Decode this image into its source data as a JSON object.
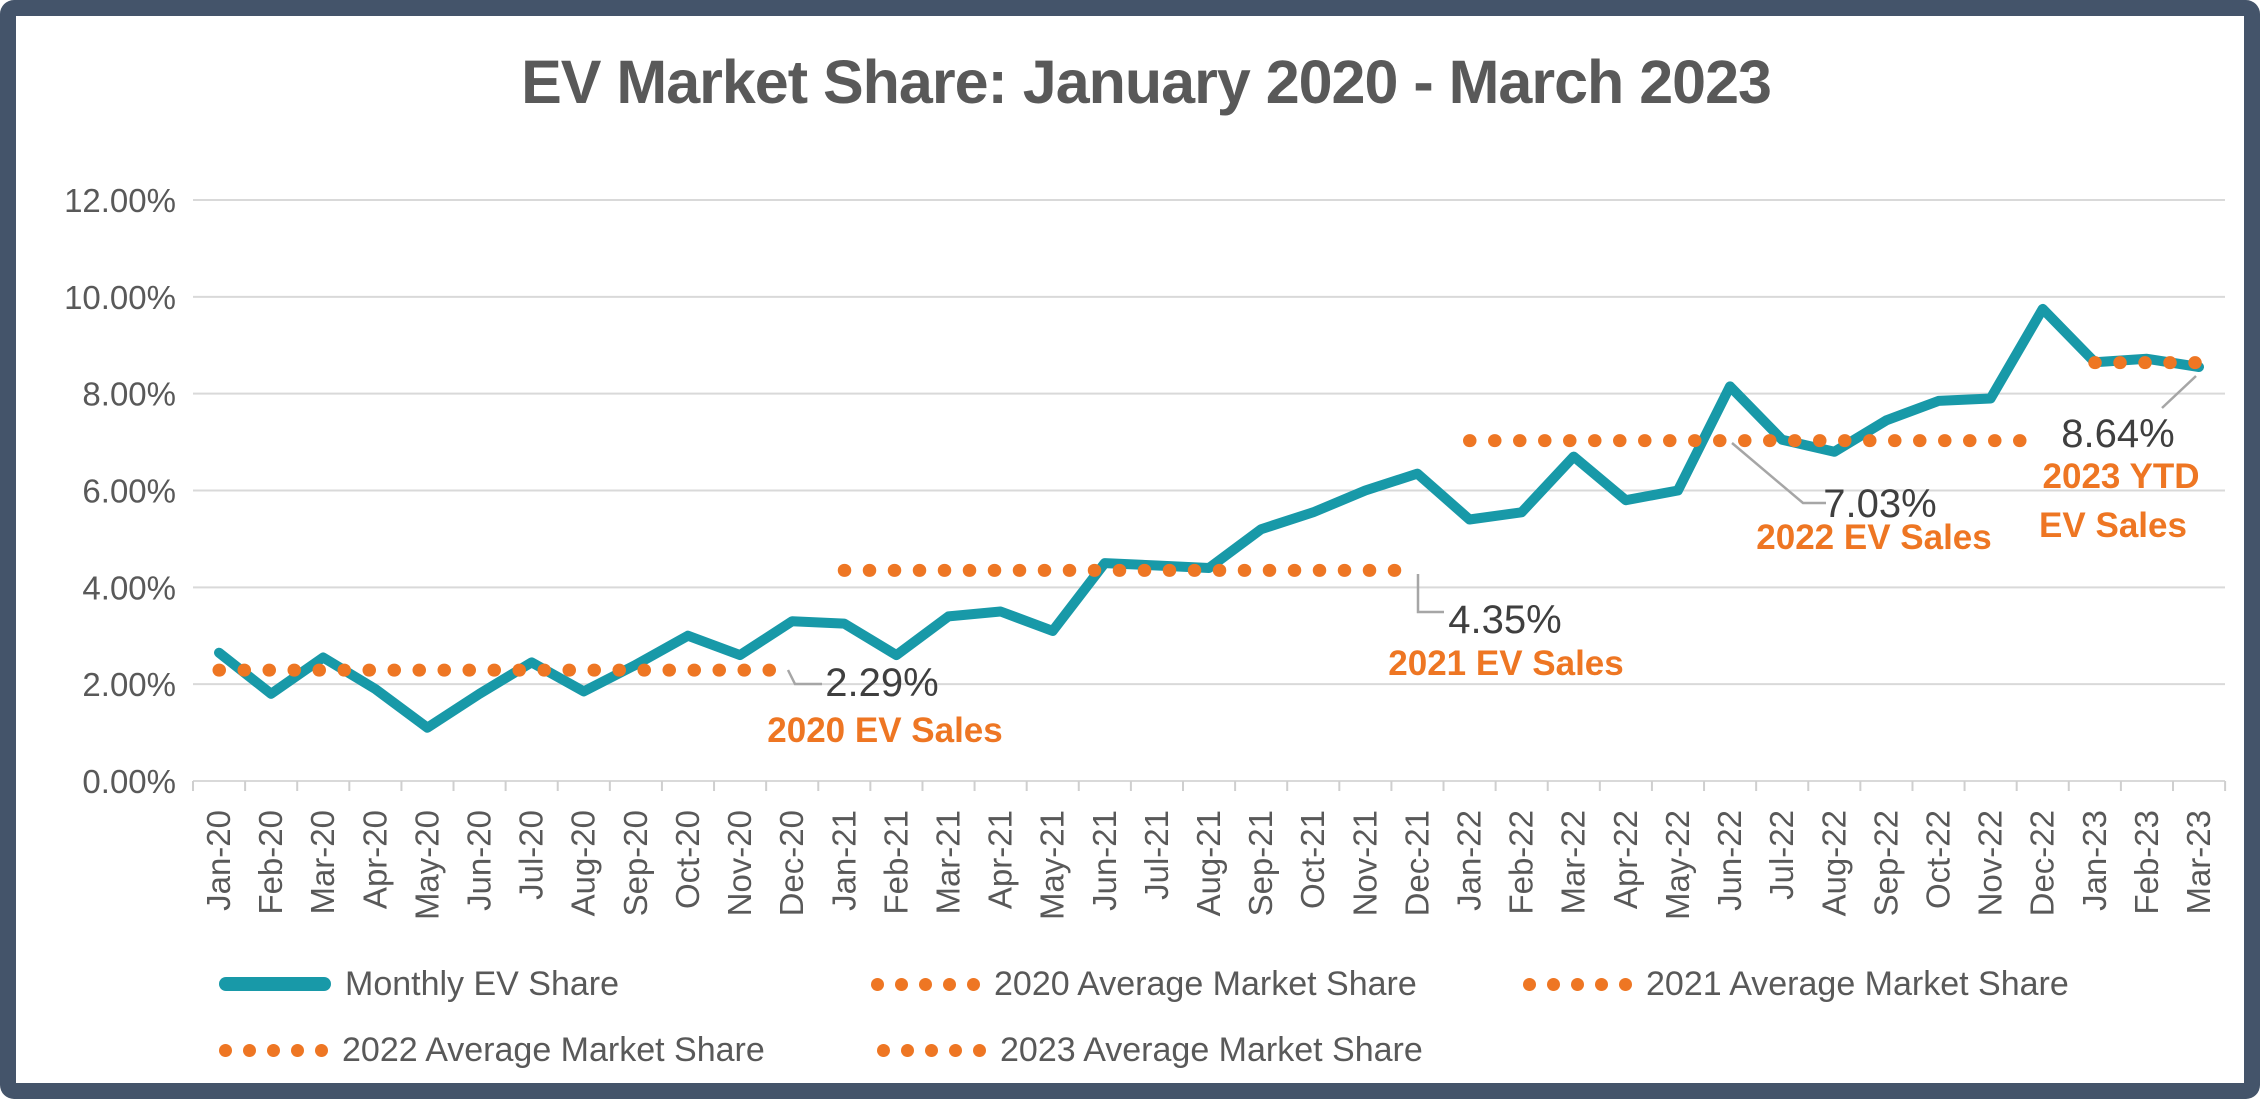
{
  "title": "EV Market Share: January 2020 - March 2023",
  "colors": {
    "series_line": "#1899A8",
    "average_dots": "#EE7623",
    "gridline": "#D9D9D9",
    "tick": "#CFCFCF",
    "axis_text": "#595959",
    "annotation_value_text": "#3F3F3F",
    "annotation_callout_text": "#EE7623",
    "leader": "#A6A6A6",
    "frame": "#44546A",
    "background": "#FFFFFF"
  },
  "chart_data": {
    "type": "line",
    "title": "EV Market Share: January 2020 - March 2023",
    "grid": "horizontal",
    "legend_position": "bottom",
    "ylim": [
      0,
      12
    ],
    "y_ticks": [
      {
        "value": 12,
        "label": "12.00%"
      },
      {
        "value": 10,
        "label": "10.00%"
      },
      {
        "value": 8,
        "label": "8.00%"
      },
      {
        "value": 6,
        "label": "6.00%"
      },
      {
        "value": 4,
        "label": "4.00%"
      },
      {
        "value": 2,
        "label": "2.00%"
      },
      {
        "value": 0,
        "label": "0.00%"
      }
    ],
    "categories": [
      "Jan-20",
      "Feb-20",
      "Mar-20",
      "Apr-20",
      "May-20",
      "Jun-20",
      "Jul-20",
      "Aug-20",
      "Sep-20",
      "Oct-20",
      "Nov-20",
      "Dec-20",
      "Jan-21",
      "Feb-21",
      "Mar-21",
      "Apr-21",
      "May-21",
      "Jun-21",
      "Jul-21",
      "Aug-21",
      "Sep-21",
      "Oct-21",
      "Nov-21",
      "Dec-21",
      "Jan-22",
      "Feb-22",
      "Mar-22",
      "Apr-22",
      "May-22",
      "Jun-22",
      "Jul-22",
      "Aug-22",
      "Sep-22",
      "Oct-22",
      "Nov-22",
      "Dec-22",
      "Jan-23",
      "Feb-23",
      "Mar-23"
    ],
    "series": [
      {
        "name": "Monthly EV Share",
        "values": [
          2.65,
          1.8,
          2.55,
          1.9,
          1.1,
          1.8,
          2.45,
          1.85,
          2.4,
          3.0,
          2.6,
          3.3,
          3.25,
          2.6,
          3.4,
          3.5,
          3.1,
          4.5,
          4.45,
          4.4,
          5.2,
          5.55,
          6.0,
          6.35,
          5.4,
          5.55,
          6.7,
          5.8,
          6.0,
          8.15,
          7.05,
          6.8,
          7.45,
          7.85,
          7.9,
          9.75,
          8.65,
          8.72,
          8.55
        ]
      }
    ],
    "average_lines": [
      {
        "name": "2020 Average Market Share",
        "value": 2.29,
        "display": "2.29%",
        "callout": "2020 EV Sales",
        "start_index": 0,
        "end_index": 11
      },
      {
        "name": "2021 Average Market Share",
        "value": 4.35,
        "display": "4.35%",
        "callout": "2021 EV Sales",
        "start_index": 12,
        "end_index": 23
      },
      {
        "name": "2022 Average Market Share",
        "value": 7.03,
        "display": "7.03%",
        "callout": "2022 EV Sales",
        "start_index": 24,
        "end_index": 35
      },
      {
        "name": "2023 Average Market Share",
        "value": 8.64,
        "display": "8.64%",
        "callout": "2023 YTD EV Sales",
        "start_index": 36,
        "end_index": 38
      }
    ]
  },
  "annotations": [
    {
      "value": "2.29%",
      "label": "2020 EV Sales"
    },
    {
      "value": "4.35%",
      "label": "2021 EV Sales"
    },
    {
      "value": "7.03%",
      "label": "2022 EV Sales"
    },
    {
      "value": "8.64%",
      "label_line1": "2023 YTD",
      "label_line2": "EV Sales"
    }
  ],
  "legend": {
    "items": [
      {
        "swatch": "line",
        "label": "Monthly EV Share"
      },
      {
        "swatch": "dots",
        "label": "2020 Average Market Share"
      },
      {
        "swatch": "dots",
        "label": "2021 Average Market Share"
      },
      {
        "swatch": "dots",
        "label": "2022 Average Market Share"
      },
      {
        "swatch": "dots",
        "label": "2023 Average Market Share"
      }
    ]
  }
}
